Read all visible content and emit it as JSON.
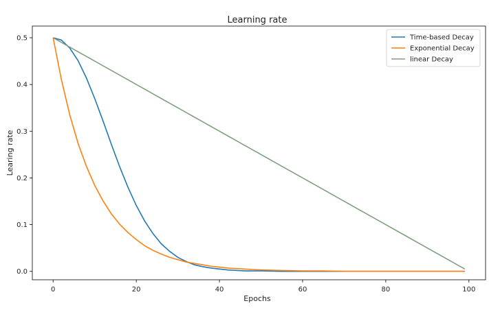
{
  "chart_data": {
    "type": "line",
    "title": "Learning rate",
    "xlabel": "Epochs",
    "ylabel": "Learing rate",
    "xlim": [
      -5,
      104
    ],
    "ylim": [
      -0.018,
      0.525
    ],
    "xticks": [
      0,
      20,
      40,
      60,
      80,
      100
    ],
    "xtick_labels": [
      "0",
      "20",
      "40",
      "60",
      "80",
      "100"
    ],
    "yticks": [
      0.0,
      0.1,
      0.2,
      0.3,
      0.4,
      0.5
    ],
    "ytick_labels": [
      "0.0",
      "0.1",
      "0.2",
      "0.3",
      "0.4",
      "0.5"
    ],
    "grid": false,
    "legend_position": "top-right",
    "x": [
      0,
      2,
      4,
      6,
      8,
      10,
      12,
      14,
      16,
      18,
      20,
      22,
      24,
      26,
      28,
      30,
      32,
      34,
      36,
      38,
      40,
      42,
      44,
      46,
      48,
      50,
      55,
      60,
      65,
      70,
      75,
      80,
      85,
      90,
      95,
      99
    ],
    "series": [
      {
        "name": "Time-based Decay",
        "color": "#1f77b4",
        "values": [
          0.5,
          0.495,
          0.478,
          0.451,
          0.414,
          0.37,
          0.322,
          0.272,
          0.224,
          0.18,
          0.141,
          0.108,
          0.081,
          0.059,
          0.043,
          0.03,
          0.021,
          0.014,
          0.01,
          0.007,
          0.005,
          0.003,
          0.002,
          0.001,
          0.001,
          0.001,
          0.0,
          0.0,
          0.0,
          0.0,
          0.0,
          0.0,
          0.0,
          0.0,
          0.0,
          0.0
        ]
      },
      {
        "name": "Exponential Decay",
        "color": "#ff7f0e",
        "values": [
          0.5,
          0.41,
          0.335,
          0.274,
          0.225,
          0.184,
          0.151,
          0.123,
          0.101,
          0.083,
          0.068,
          0.055,
          0.045,
          0.037,
          0.03,
          0.025,
          0.02,
          0.017,
          0.014,
          0.011,
          0.009,
          0.007,
          0.006,
          0.005,
          0.004,
          0.003,
          0.002,
          0.001,
          0.001,
          0.0,
          0.0,
          0.0,
          0.0,
          0.0,
          0.0,
          0.0
        ]
      },
      {
        "name": "linear Decay",
        "color": "#7f9f7f",
        "values": [
          0.5,
          0.49,
          0.48,
          0.47,
          0.46,
          0.45,
          0.44,
          0.43,
          0.42,
          0.41,
          0.4,
          0.39,
          0.38,
          0.37,
          0.36,
          0.35,
          0.34,
          0.33,
          0.32,
          0.31,
          0.3,
          0.29,
          0.28,
          0.27,
          0.26,
          0.25,
          0.225,
          0.2,
          0.175,
          0.15,
          0.125,
          0.1,
          0.075,
          0.05,
          0.025,
          0.005
        ]
      }
    ]
  }
}
